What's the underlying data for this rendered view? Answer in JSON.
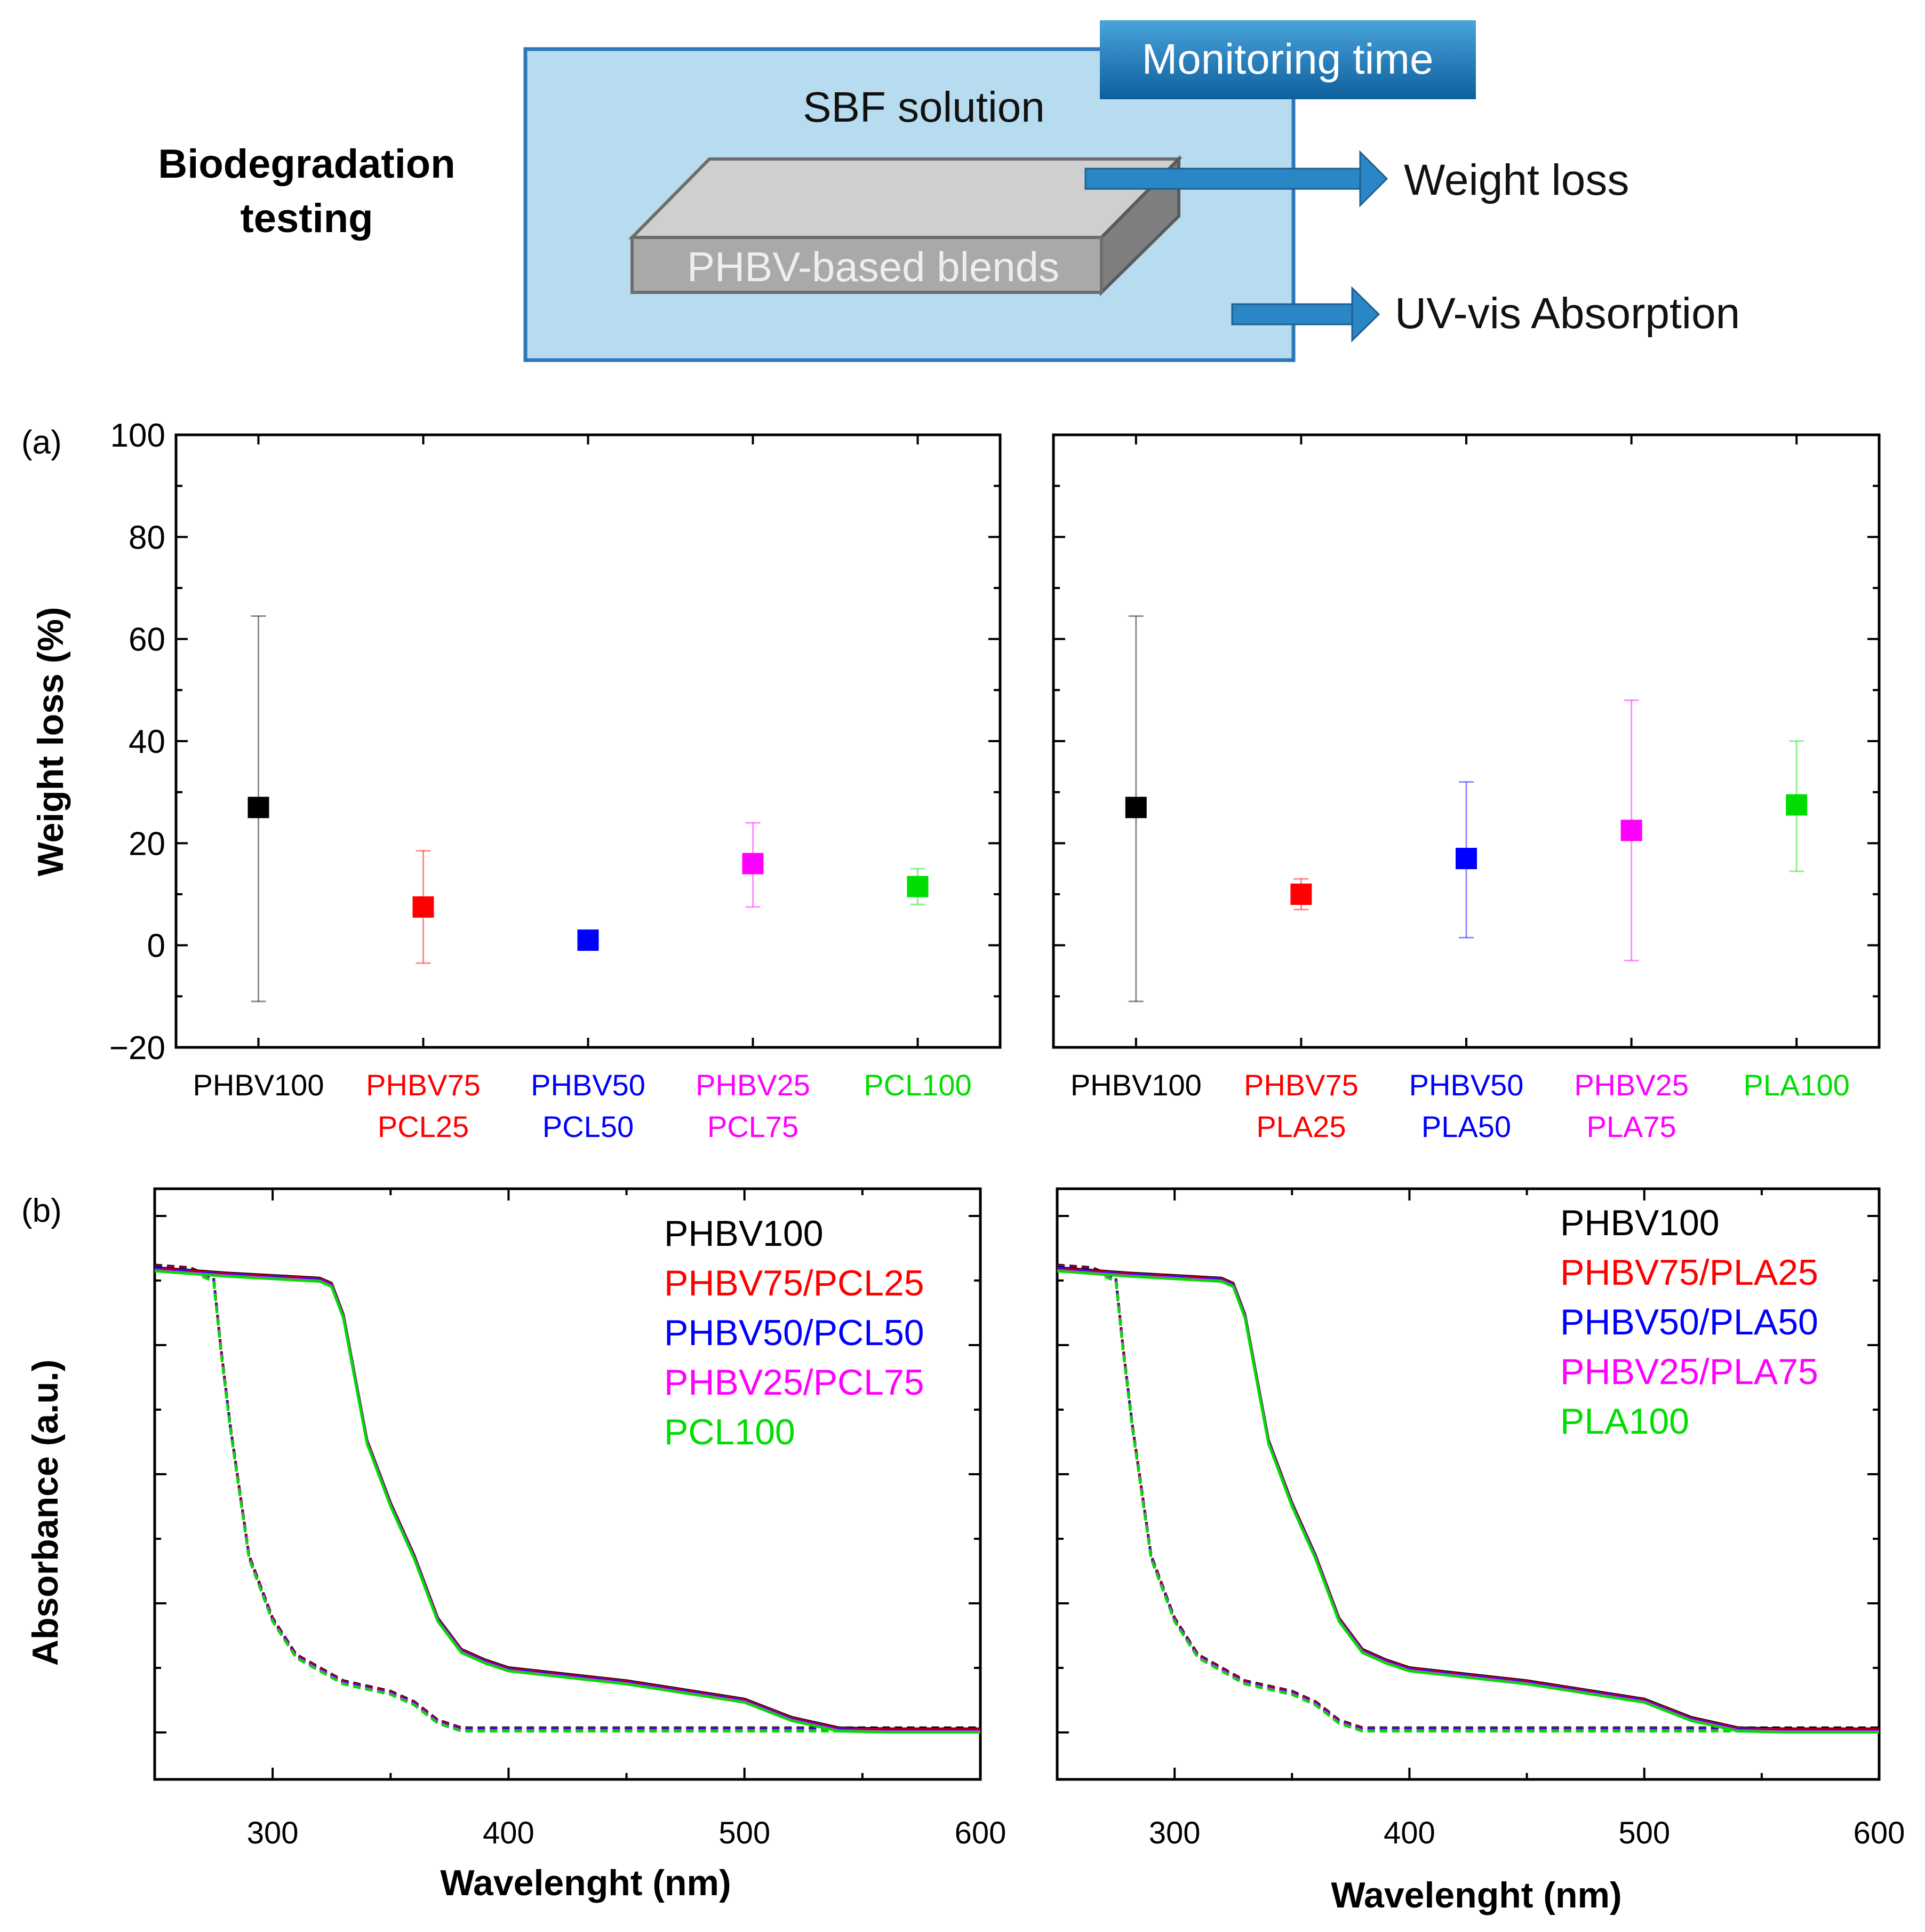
{
  "schematic": {
    "heading_line1": "Biodegradation",
    "heading_line2": "testing",
    "solution_label": "SBF solution",
    "monitoring_label": "Monitoring time",
    "sample_label": "PHBV-based blends",
    "output1": "Weight loss",
    "output2": "UV-vis Absorption",
    "colors": {
      "tank": "#b7dcf0",
      "tank_border": "#2d78b8",
      "banner": "#1675b5",
      "arrow": "#2a86c4",
      "slab_top": "#cfcfcf",
      "slab_front": "#a9a9a9",
      "slab_side": "#7f7f7f"
    }
  },
  "chart_data": [
    {
      "id": "a-left",
      "panel_tag": "(a)",
      "type": "scatter",
      "ylabel": "Weight loss (%)",
      "ylim": [
        -20,
        100
      ],
      "yticks": [
        "−20",
        "0",
        "20",
        "40",
        "60",
        "80",
        "100"
      ],
      "points": [
        {
          "label_lines": [
            "PHBV100"
          ],
          "color": "#000000",
          "value": 27,
          "err_low": -11,
          "err_high": 64.5
        },
        {
          "label_lines": [
            "PHBV75",
            "PCL25"
          ],
          "color": "#ff0000",
          "value": 7.5,
          "err_low": -3.5,
          "err_high": 18.5
        },
        {
          "label_lines": [
            "PHBV50",
            "PCL50"
          ],
          "color": "#0000ff",
          "value": 1,
          "err_low": 1,
          "err_high": 1
        },
        {
          "label_lines": [
            "PHBV25",
            "PCL75"
          ],
          "color": "#ff00ff",
          "value": 16,
          "err_low": 7.5,
          "err_high": 24
        },
        {
          "label_lines": [
            "PCL100"
          ],
          "color": "#00dd00",
          "value": 11.5,
          "err_low": 8,
          "err_high": 15
        }
      ]
    },
    {
      "id": "a-right",
      "type": "scatter",
      "ylim": [
        -20,
        100
      ],
      "points": [
        {
          "label_lines": [
            "PHBV100"
          ],
          "color": "#000000",
          "value": 27,
          "err_low": -11,
          "err_high": 64.5
        },
        {
          "label_lines": [
            "PHBV75",
            "PLA25"
          ],
          "color": "#ff0000",
          "value": 10,
          "err_low": 7,
          "err_high": 13
        },
        {
          "label_lines": [
            "PHBV50",
            "PLA50"
          ],
          "color": "#0000ff",
          "value": 17,
          "err_low": 1.5,
          "err_high": 32
        },
        {
          "label_lines": [
            "PHBV25",
            "PLA75"
          ],
          "color": "#ff00ff",
          "value": 22.5,
          "err_low": -3,
          "err_high": 48
        },
        {
          "label_lines": [
            "PLA100"
          ],
          "color": "#00dd00",
          "value": 27.5,
          "err_low": 14.5,
          "err_high": 40
        }
      ]
    },
    {
      "id": "b-left",
      "panel_tag": "(b)",
      "type": "line",
      "ylabel": "Absorbance (a.u.)",
      "xlabel": "Wavelenght (nm)",
      "xlim": [
        250,
        600
      ],
      "ylim": [
        0,
        1
      ],
      "xticks": [
        "300",
        "400",
        "500",
        "600"
      ],
      "legend": [
        {
          "name": "PHBV100",
          "color": "#000000"
        },
        {
          "name": "PHBV75/PCL25",
          "color": "#ff0000"
        },
        {
          "name": "PHBV50/PCL50",
          "color": "#0000ff"
        },
        {
          "name": "PHBV25/PCL75",
          "color": "#ff00ff"
        },
        {
          "name": "PCL100",
          "color": "#00dd00"
        }
      ],
      "solid_curve": [
        [
          250,
          0.95
        ],
        [
          265,
          0.945
        ],
        [
          280,
          0.94
        ],
        [
          300,
          0.935
        ],
        [
          320,
          0.93
        ],
        [
          325,
          0.92
        ],
        [
          330,
          0.86
        ],
        [
          335,
          0.74
        ],
        [
          340,
          0.62
        ],
        [
          350,
          0.5
        ],
        [
          360,
          0.4
        ],
        [
          370,
          0.28
        ],
        [
          380,
          0.22
        ],
        [
          390,
          0.2
        ],
        [
          400,
          0.185
        ],
        [
          450,
          0.16
        ],
        [
          500,
          0.125
        ],
        [
          520,
          0.09
        ],
        [
          540,
          0.07
        ],
        [
          560,
          0.068
        ],
        [
          600,
          0.068
        ]
      ],
      "dashed_curve": [
        [
          250,
          0.955
        ],
        [
          265,
          0.95
        ],
        [
          275,
          0.93
        ],
        [
          278,
          0.8
        ],
        [
          282,
          0.65
        ],
        [
          290,
          0.4
        ],
        [
          300,
          0.28
        ],
        [
          310,
          0.21
        ],
        [
          330,
          0.16
        ],
        [
          350,
          0.14
        ],
        [
          360,
          0.12
        ],
        [
          370,
          0.085
        ],
        [
          380,
          0.07
        ],
        [
          600,
          0.07
        ]
      ]
    },
    {
      "id": "b-right",
      "type": "line",
      "xlabel": "Wavelenght (nm)",
      "xlim": [
        250,
        600
      ],
      "ylim": [
        0,
        1
      ],
      "xticks": [
        "300",
        "400",
        "500",
        "600"
      ],
      "legend": [
        {
          "name": "PHBV100",
          "color": "#000000"
        },
        {
          "name": "PHBV75/PLA25",
          "color": "#ff0000"
        },
        {
          "name": "PHBV50/PLA50",
          "color": "#0000ff"
        },
        {
          "name": "PHBV25/PLA75",
          "color": "#ff00ff"
        },
        {
          "name": "PLA100",
          "color": "#00dd00"
        }
      ],
      "solid_curve": [
        [
          250,
          0.95
        ],
        [
          265,
          0.945
        ],
        [
          280,
          0.94
        ],
        [
          300,
          0.935
        ],
        [
          320,
          0.93
        ],
        [
          325,
          0.92
        ],
        [
          330,
          0.86
        ],
        [
          335,
          0.74
        ],
        [
          340,
          0.62
        ],
        [
          350,
          0.5
        ],
        [
          360,
          0.4
        ],
        [
          370,
          0.28
        ],
        [
          380,
          0.22
        ],
        [
          390,
          0.2
        ],
        [
          400,
          0.185
        ],
        [
          450,
          0.16
        ],
        [
          500,
          0.125
        ],
        [
          520,
          0.09
        ],
        [
          540,
          0.07
        ],
        [
          560,
          0.068
        ],
        [
          600,
          0.068
        ]
      ],
      "dashed_curve": [
        [
          250,
          0.955
        ],
        [
          265,
          0.95
        ],
        [
          275,
          0.93
        ],
        [
          278,
          0.8
        ],
        [
          282,
          0.65
        ],
        [
          290,
          0.4
        ],
        [
          300,
          0.28
        ],
        [
          310,
          0.21
        ],
        [
          330,
          0.16
        ],
        [
          350,
          0.14
        ],
        [
          360,
          0.12
        ],
        [
          370,
          0.085
        ],
        [
          380,
          0.07
        ],
        [
          600,
          0.07
        ]
      ]
    }
  ]
}
